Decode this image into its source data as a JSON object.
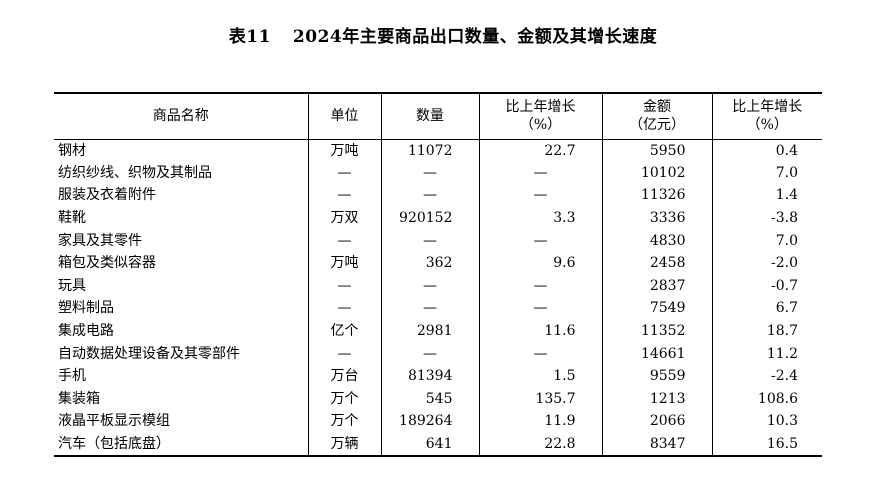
{
  "title": {
    "number": "表11",
    "text": "2024年主要商品出口数量、金额及其增长速度"
  },
  "headers": [
    {
      "line1": "商品名称",
      "line2": ""
    },
    {
      "line1": "单位",
      "line2": ""
    },
    {
      "line1": "数量",
      "line2": ""
    },
    {
      "line1": "比上年增长",
      "line2": "（%）"
    },
    {
      "line1": "金额",
      "line2": "（亿元）"
    },
    {
      "line1": "比上年增长",
      "line2": "（%）"
    }
  ],
  "rows": [
    {
      "name": "钢材",
      "unit": "万吨",
      "quantity": "11072",
      "qty_growth": "22.7",
      "amount": "5950",
      "amount_growth": "0.4"
    },
    {
      "name": "纺织纱线、织物及其制品",
      "unit": "—",
      "quantity": "—",
      "qty_growth": "—",
      "amount": "10102",
      "amount_growth": "7.0"
    },
    {
      "name": "服装及衣着附件",
      "unit": "—",
      "quantity": "—",
      "qty_growth": "—",
      "amount": "11326",
      "amount_growth": "1.4"
    },
    {
      "name": "鞋靴",
      "unit": "万双",
      "quantity": "920152",
      "qty_growth": "3.3",
      "amount": "3336",
      "amount_growth": "-3.8"
    },
    {
      "name": "家具及其零件",
      "unit": "—",
      "quantity": "—",
      "qty_growth": "—",
      "amount": "4830",
      "amount_growth": "7.0"
    },
    {
      "name": "箱包及类似容器",
      "unit": "万吨",
      "quantity": "362",
      "qty_growth": "9.6",
      "amount": "2458",
      "amount_growth": "-2.0"
    },
    {
      "name": "玩具",
      "unit": "—",
      "quantity": "—",
      "qty_growth": "—",
      "amount": "2837",
      "amount_growth": "-0.7"
    },
    {
      "name": "塑料制品",
      "unit": "—",
      "quantity": "—",
      "qty_growth": "—",
      "amount": "7549",
      "amount_growth": "6.7"
    },
    {
      "name": "集成电路",
      "unit": "亿个",
      "quantity": "2981",
      "qty_growth": "11.6",
      "amount": "11352",
      "amount_growth": "18.7"
    },
    {
      "name": "自动数据处理设备及其零部件",
      "unit": "—",
      "quantity": "—",
      "qty_growth": "—",
      "amount": "14661",
      "amount_growth": "11.2"
    },
    {
      "name": "手机",
      "unit": "万台",
      "quantity": "81394",
      "qty_growth": "1.5",
      "amount": "9559",
      "amount_growth": "-2.4"
    },
    {
      "name": "集装箱",
      "unit": "万个",
      "quantity": "545",
      "qty_growth": "135.7",
      "amount": "1213",
      "amount_growth": "108.6"
    },
    {
      "name": "液晶平板显示模组",
      "unit": "万个",
      "quantity": "189264",
      "qty_growth": "11.9",
      "amount": "2066",
      "amount_growth": "10.3"
    },
    {
      "name": "汽车（包括底盘）",
      "unit": "万辆",
      "quantity": "641",
      "qty_growth": "22.8",
      "amount": "8347",
      "amount_growth": "16.5"
    }
  ]
}
